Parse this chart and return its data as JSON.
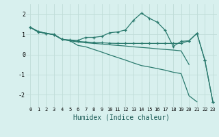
{
  "xlabel": "Humidex (Indice chaleur)",
  "bg_color": "#d8f0ee",
  "line_color": "#2a7a6e",
  "grid_color": "#c0dcd8",
  "xlim": [
    -0.5,
    23.5
  ],
  "ylim": [
    -2.6,
    2.5
  ],
  "xticks": [
    0,
    1,
    2,
    3,
    4,
    5,
    6,
    7,
    8,
    9,
    10,
    11,
    12,
    13,
    14,
    15,
    16,
    17,
    18,
    19,
    20,
    21,
    22,
    23
  ],
  "yticks": [
    -2,
    -1,
    0,
    1,
    2
  ],
  "lines": [
    {
      "x": [
        0,
        1,
        2,
        3,
        4,
        5,
        6,
        7,
        8,
        9,
        10,
        11,
        12,
        13,
        14,
        15,
        16,
        17,
        18,
        19,
        20,
        21,
        22,
        23
      ],
      "y": [
        1.35,
        1.15,
        1.05,
        1.0,
        0.75,
        0.72,
        0.7,
        0.85,
        0.85,
        0.9,
        1.08,
        1.12,
        1.22,
        1.7,
        2.05,
        1.8,
        1.6,
        1.2,
        0.4,
        0.65,
        0.68,
        1.05,
        -0.3,
        -2.35
      ],
      "marker": true
    },
    {
      "x": [
        0,
        1,
        2,
        3,
        4,
        5,
        6,
        7,
        8,
        9,
        10,
        11,
        12,
        13,
        14,
        15,
        16,
        17,
        18,
        19,
        20,
        21,
        22,
        23
      ],
      "y": [
        1.35,
        1.12,
        1.05,
        0.98,
        0.75,
        0.68,
        0.45,
        0.38,
        0.25,
        0.12,
        -0.02,
        -0.15,
        -0.28,
        -0.42,
        -0.55,
        -0.62,
        -0.7,
        -0.78,
        -0.88,
        -0.95,
        -2.05,
        -2.35,
        null,
        null
      ],
      "marker": false
    },
    {
      "x": [
        0,
        1,
        2,
        3,
        4,
        5,
        6,
        7,
        8,
        9,
        10,
        11,
        12,
        13,
        14,
        15,
        16,
        17,
        18,
        19,
        20
      ],
      "y": [
        1.35,
        1.12,
        1.05,
        0.98,
        0.75,
        0.68,
        0.62,
        0.58,
        0.55,
        0.52,
        0.48,
        0.45,
        0.42,
        0.38,
        0.35,
        0.32,
        0.28,
        0.25,
        0.22,
        0.18,
        -0.5
      ],
      "marker": false
    },
    {
      "x": [
        0,
        1,
        2,
        3,
        4,
        5,
        6,
        7,
        8,
        9,
        10,
        11,
        12,
        13,
        14,
        15,
        16,
        17,
        18,
        19,
        20,
        21,
        22,
        23
      ],
      "y": [
        1.35,
        1.12,
        1.05,
        0.98,
        0.75,
        0.7,
        0.65,
        0.62,
        0.6,
        0.58,
        0.56,
        0.55,
        0.55,
        0.55,
        0.55,
        0.55,
        0.55,
        0.55,
        0.55,
        0.55,
        0.68,
        1.05,
        -0.3,
        -2.35
      ],
      "marker": true
    }
  ]
}
